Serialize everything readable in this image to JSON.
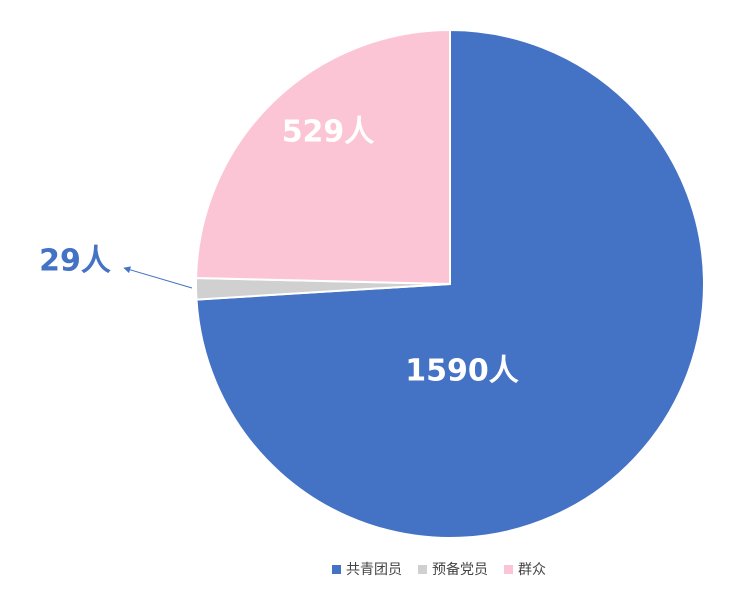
{
  "chart_data": {
    "type": "pie",
    "categories": [
      "共青团员",
      "预备党员",
      "群众"
    ],
    "values": [
      1590,
      29,
      529
    ],
    "value_labels": [
      "1590人",
      "29人",
      "529人"
    ],
    "colors": [
      "#4472c4",
      "#d0d0d0",
      "#fcc5d6"
    ]
  }
}
